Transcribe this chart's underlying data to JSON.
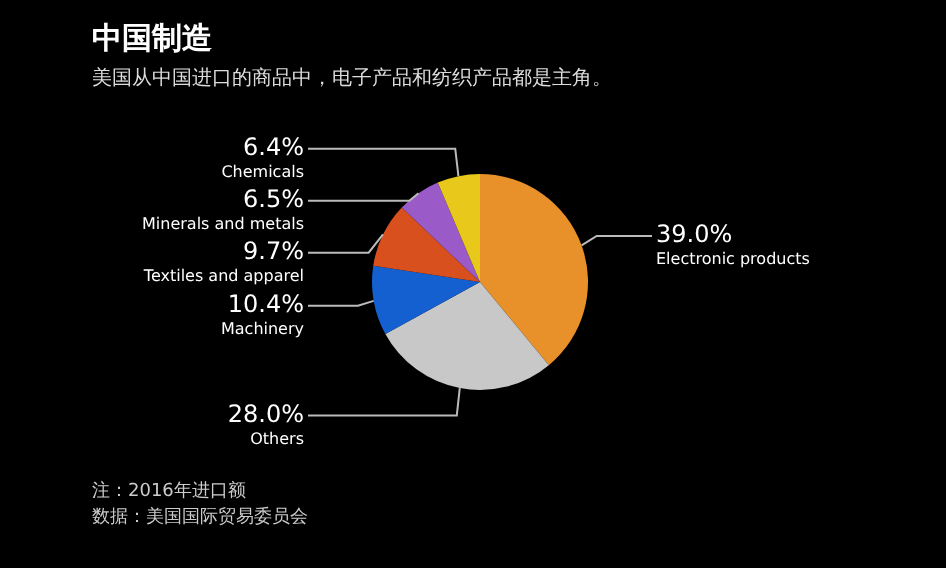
{
  "chart_data": {
    "type": "pie",
    "title": "中国制造",
    "subtitle": "美国从中国进口的商品中，电子产品和纺织产品都是主角。",
    "categories": [
      "Electronic products",
      "Others",
      "Machinery",
      "Textiles and apparel",
      "Minerals and metals",
      "Chemicals"
    ],
    "values": [
      39.0,
      28.0,
      10.4,
      9.7,
      6.5,
      6.4
    ],
    "value_labels": [
      "39.0%",
      "28.0%",
      "10.4%",
      "9.7%",
      "6.5%",
      "6.4%"
    ],
    "colors": [
      "#e8902a",
      "#c8c8c8",
      "#1560d0",
      "#d8501e",
      "#9a5ac8",
      "#e8c81a"
    ],
    "legend": false,
    "annotations": [
      "注：2016年进口额",
      "数据：美国国际贸易委员会"
    ]
  }
}
